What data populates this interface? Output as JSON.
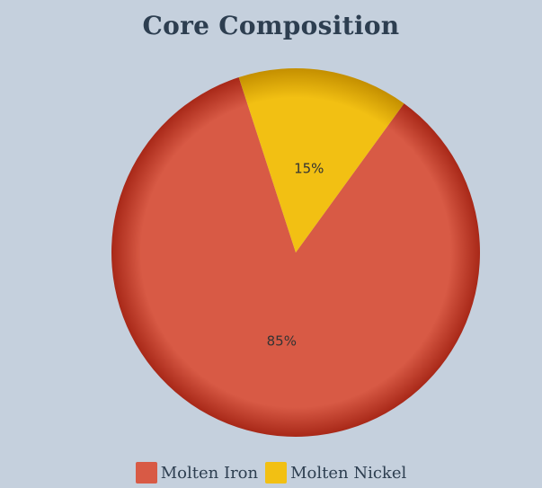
{
  "chart_data": {
    "type": "pie",
    "title": "Core Composition",
    "categories": [
      "Molten Iron",
      "Molten Nickel"
    ],
    "values": [
      85,
      15
    ],
    "value_labels": [
      "85%",
      "15%"
    ],
    "colors": [
      "#d85a45",
      "#f2c013"
    ],
    "shade_colors": [
      "#a82818",
      "#c48f00"
    ],
    "legend_position": "bottom"
  },
  "legend": {
    "items": [
      {
        "label": "Molten Iron",
        "color": "#d85a45"
      },
      {
        "label": "Molten Nickel",
        "color": "#f2c013"
      }
    ]
  }
}
